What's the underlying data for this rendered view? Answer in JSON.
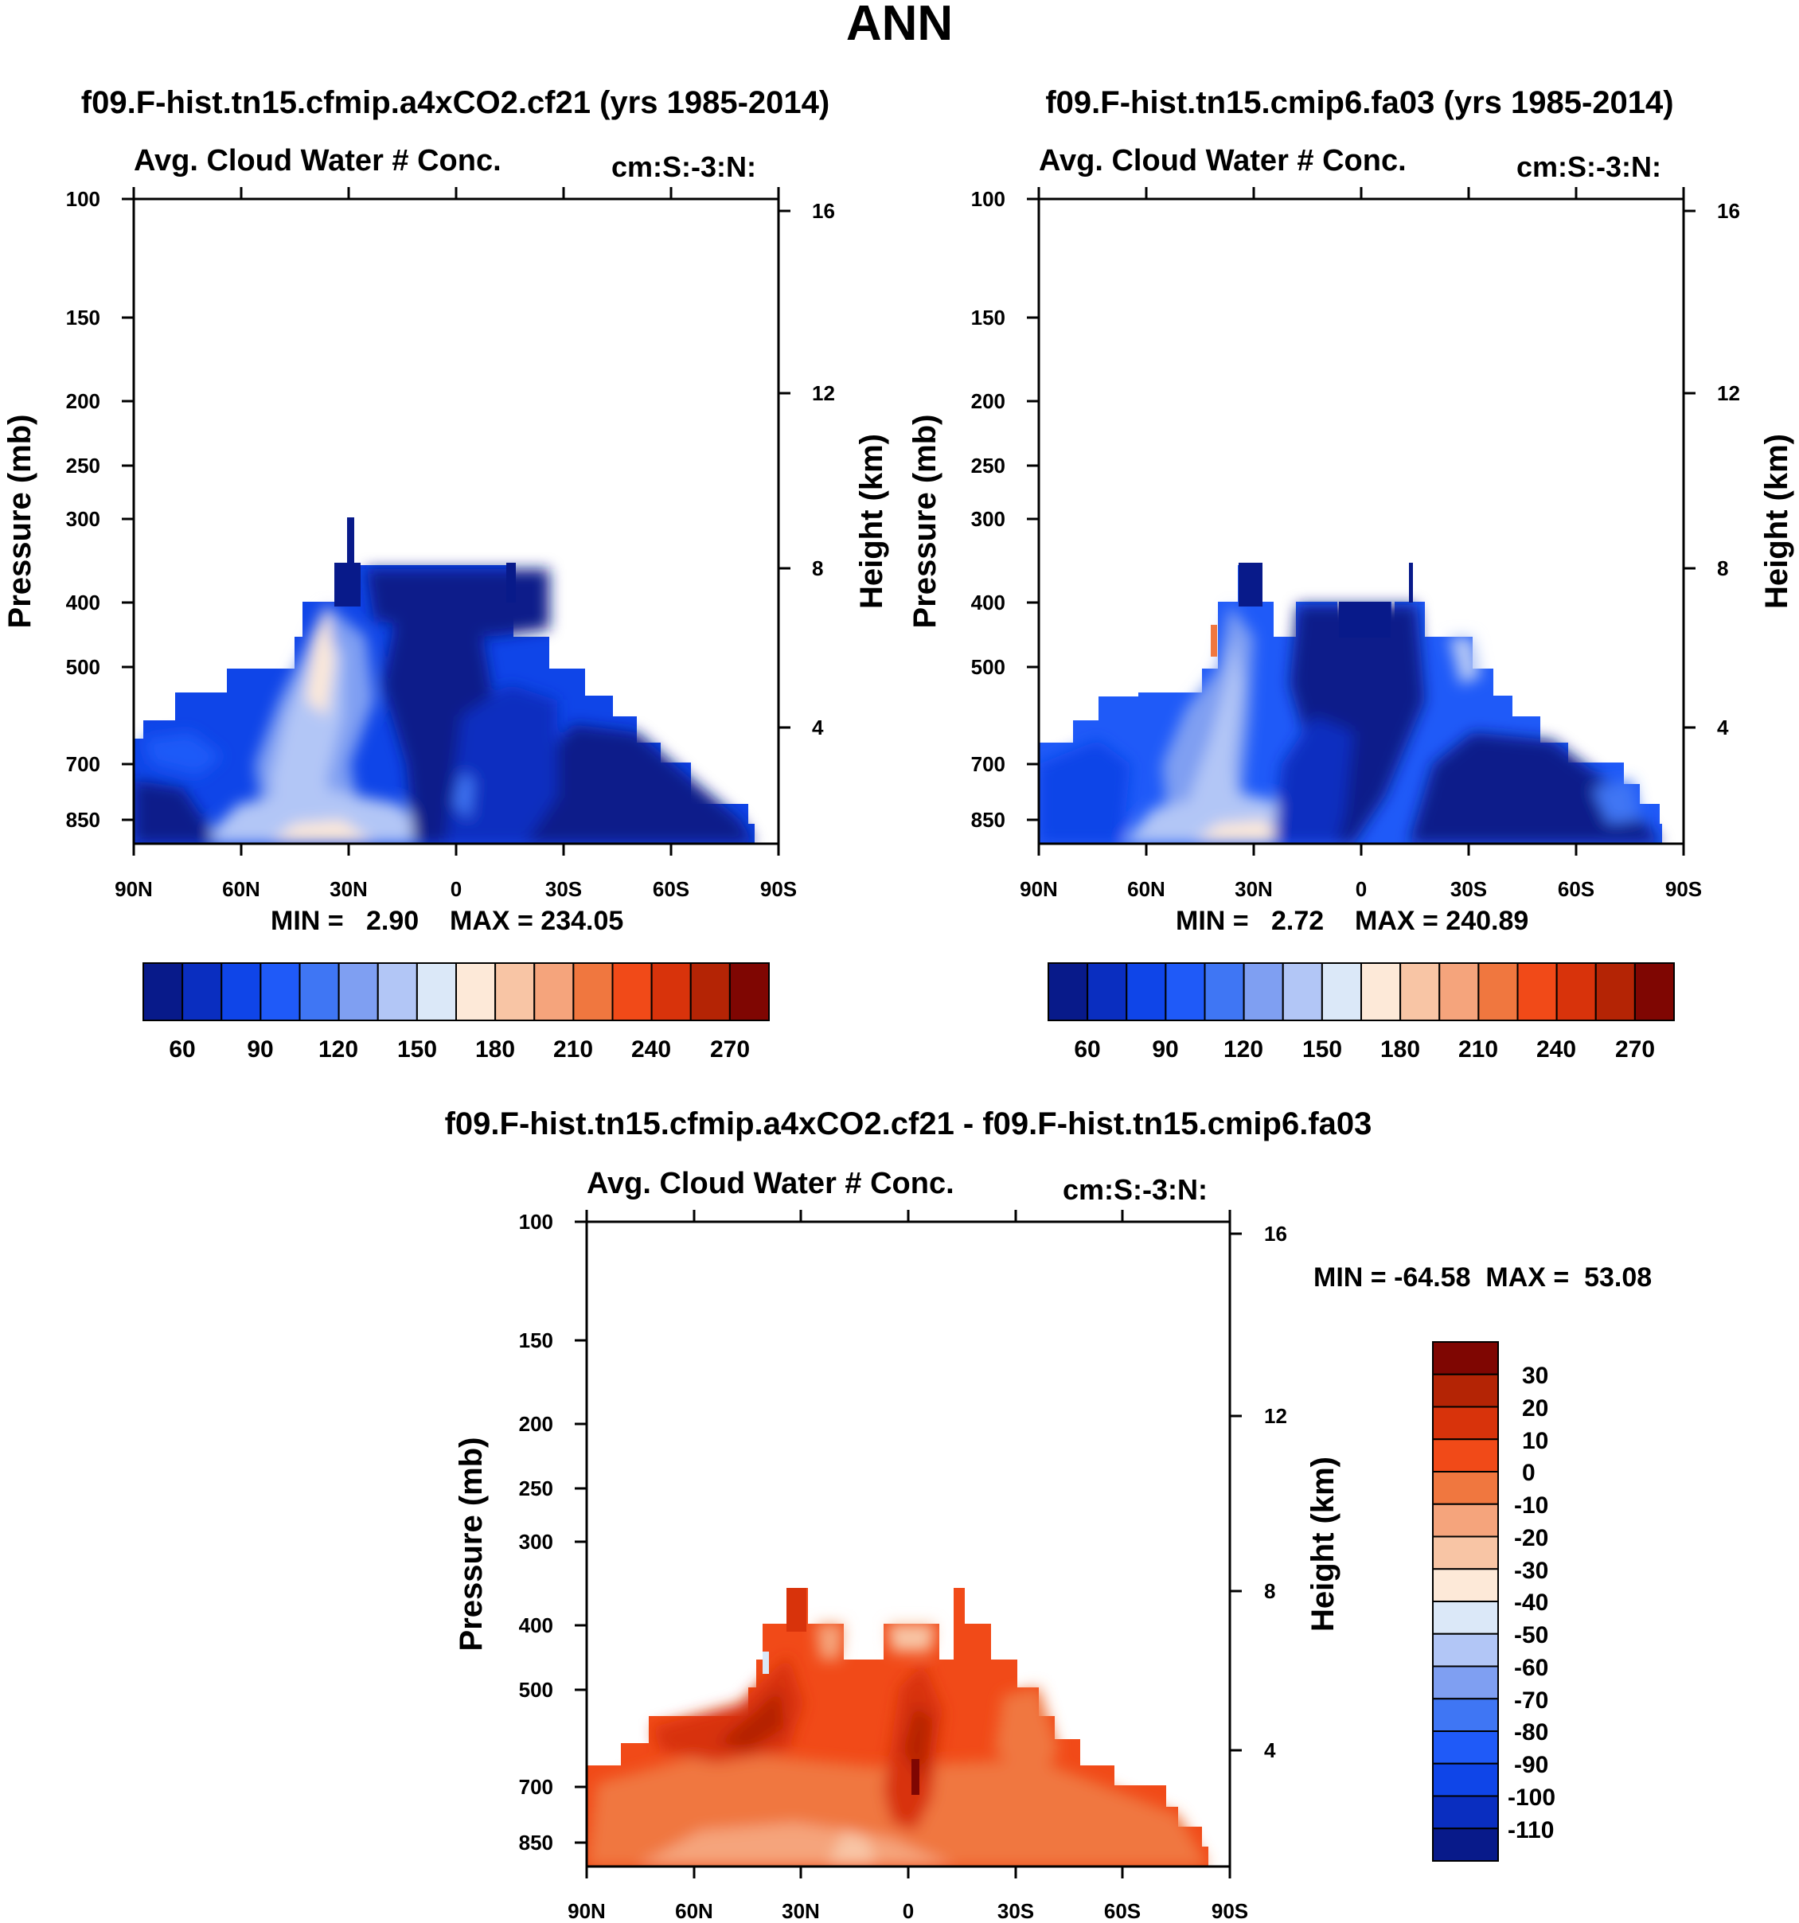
{
  "figure_title": "ANN",
  "colors": {
    "abs_palette": [
      "#081a8a",
      "#0a2ec0",
      "#0f45e8",
      "#1f5af8",
      "#3f76f4",
      "#7f9ff2",
      "#b2c6f6",
      "#dbe8f8",
      "#fde9d8",
      "#f8c5a5",
      "#f5a47c",
      "#f0773f",
      "#f14a18",
      "#d8330b",
      "#b42405",
      "#7f0602"
    ],
    "diff_palette": [
      "#081a8a",
      "#0a2ec0",
      "#0f45e8",
      "#1f5af8",
      "#3f76f4",
      "#7f9ff2",
      "#b2c6f6",
      "#dbe8f8",
      "#fde9d8",
      "#f8c5a5",
      "#f5a47c",
      "#f0773f",
      "#f14a18",
      "#d8330b",
      "#b42405",
      "#7f0602"
    ]
  },
  "chart_data": [
    {
      "type": "heatmap",
      "panel_title": "f09.F-hist.tn15.cfmip.a4xCO2.cf21 (yrs 1985-2014)",
      "title": "Avg. Cloud Water # Conc.",
      "units": "cm:S:-3:N:",
      "ylabel": "Pressure (mb)",
      "ylabel_right": "Height (km)",
      "x_ticks": [
        "90N",
        "60N",
        "30N",
        "0",
        "30S",
        "60S",
        "90S"
      ],
      "y_ticks": [
        "100",
        "150",
        "200",
        "250",
        "300",
        "400",
        "500",
        "700",
        "850"
      ],
      "y_ticks_right": [
        "16",
        "12",
        "8",
        "4"
      ],
      "ylim": [
        100,
        1000
      ],
      "min_label": "MIN =   2.90",
      "max_label": "MAX = 234.05",
      "min": 2.9,
      "max": 234.05,
      "colorbar_labels": [
        "60",
        "90",
        "120",
        "150",
        "180",
        "210",
        "240",
        "270"
      ],
      "colorbar_levels": [
        45,
        60,
        75,
        90,
        105,
        120,
        135,
        150,
        165,
        180,
        195,
        210,
        225,
        240,
        255,
        270
      ]
    },
    {
      "type": "heatmap",
      "panel_title": "f09.F-hist.tn15.cmip6.fa03 (yrs 1985-2014)",
      "title": "Avg. Cloud Water # Conc.",
      "units": "cm:S:-3:N:",
      "ylabel": "Pressure (mb)",
      "ylabel_right": "Height (km)",
      "x_ticks": [
        "90N",
        "60N",
        "30N",
        "0",
        "30S",
        "60S",
        "90S"
      ],
      "y_ticks": [
        "100",
        "150",
        "200",
        "250",
        "300",
        "400",
        "500",
        "700",
        "850"
      ],
      "y_ticks_right": [
        "16",
        "12",
        "8",
        "4"
      ],
      "ylim": [
        100,
        1000
      ],
      "min_label": "MIN =   2.72",
      "max_label": "MAX = 240.89",
      "min": 2.72,
      "max": 240.89,
      "colorbar_labels": [
        "60",
        "90",
        "120",
        "150",
        "180",
        "210",
        "240",
        "270"
      ],
      "colorbar_levels": [
        45,
        60,
        75,
        90,
        105,
        120,
        135,
        150,
        165,
        180,
        195,
        210,
        225,
        240,
        255,
        270
      ]
    },
    {
      "type": "heatmap",
      "panel_title": "f09.F-hist.tn15.cfmip.a4xCO2.cf21 - f09.F-hist.tn15.cmip6.fa03",
      "title": "Avg. Cloud Water # Conc.",
      "units": "cm:S:-3:N:",
      "ylabel": "Pressure (mb)",
      "ylabel_right": "Height (km)",
      "x_ticks": [
        "90N",
        "60N",
        "30N",
        "0",
        "30S",
        "60S",
        "90S"
      ],
      "y_ticks": [
        "100",
        "150",
        "200",
        "250",
        "300",
        "400",
        "500",
        "700",
        "850"
      ],
      "y_ticks_right": [
        "16",
        "12",
        "8",
        "4"
      ],
      "ylim": [
        100,
        1000
      ],
      "minmax_label": "MIN = -64.58  MAX =  53.08",
      "min": -64.58,
      "max": 53.08,
      "colorbar_labels": [
        "30",
        "20",
        "10",
        "0",
        "-10",
        "-20",
        "-30",
        "-40",
        "-50",
        "-60",
        "-70",
        "-80",
        "-90",
        "-100",
        "-110"
      ]
    }
  ]
}
